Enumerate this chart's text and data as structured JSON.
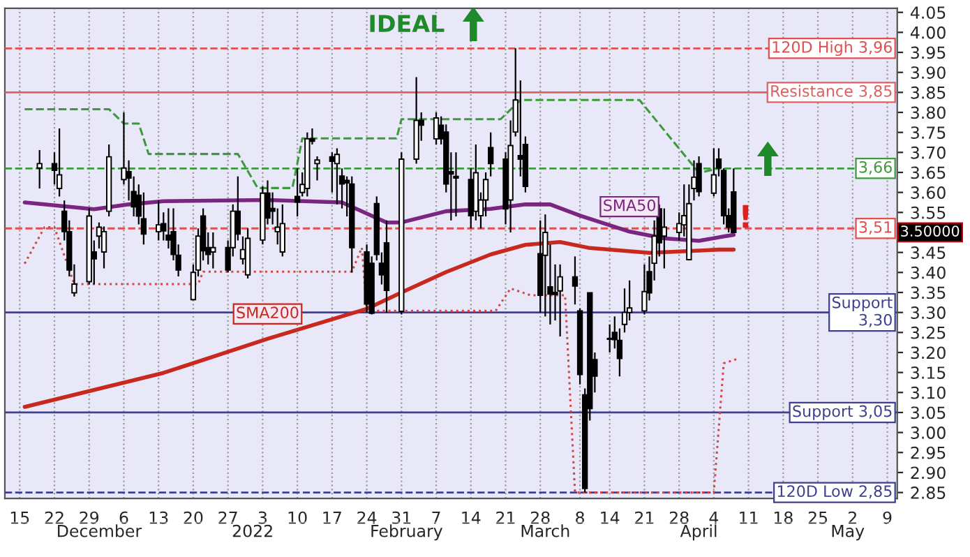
{
  "chart_data": {
    "type": "candlestick",
    "x": [
      "2021-11-19",
      "2021-11-22",
      "2021-11-23",
      "2021-11-24",
      "2021-11-25",
      "2021-11-26",
      "2021-11-29",
      "2021-11-30",
      "2021-12-01",
      "2021-12-02",
      "2021-12-03",
      "2021-12-06",
      "2021-12-07",
      "2021-12-08",
      "2021-12-09",
      "2021-12-10",
      "2021-12-13",
      "2021-12-14",
      "2021-12-15",
      "2021-12-16",
      "2021-12-17",
      "2021-12-20",
      "2021-12-21",
      "2021-12-22",
      "2021-12-23",
      "2021-12-24",
      "2021-12-27",
      "2021-12-28",
      "2021-12-29",
      "2021-12-30",
      "2021-12-31",
      "2022-01-03",
      "2022-01-04",
      "2022-01-05",
      "2022-01-06",
      "2022-01-07",
      "2022-01-10",
      "2022-01-11",
      "2022-01-12",
      "2022-01-13",
      "2022-01-14",
      "2022-01-17",
      "2022-01-18",
      "2022-01-19",
      "2022-01-20",
      "2022-01-21",
      "2022-01-24",
      "2022-01-25",
      "2022-01-26",
      "2022-01-27",
      "2022-01-28",
      "2022-01-31",
      "2022-02-03",
      "2022-02-04",
      "2022-02-07",
      "2022-02-08",
      "2022-02-09",
      "2022-02-10",
      "2022-02-11",
      "2022-02-14",
      "2022-02-15",
      "2022-02-16",
      "2022-02-17",
      "2022-02-18",
      "2022-02-21",
      "2022-02-22",
      "2022-02-23",
      "2022-02-24",
      "2022-02-25",
      "2022-02-28",
      "2022-03-01",
      "2022-03-02",
      "2022-03-03",
      "2022-03-04",
      "2022-03-07",
      "2022-03-08",
      "2022-03-09",
      "2022-03-10",
      "2022-03-11",
      "2022-03-14",
      "2022-03-15",
      "2022-03-16",
      "2022-03-17",
      "2022-03-18",
      "2022-03-21",
      "2022-03-22",
      "2022-03-23",
      "2022-03-24",
      "2022-03-25",
      "2022-03-28",
      "2022-03-29",
      "2022-03-30",
      "2022-03-31",
      "2022-04-01",
      "2022-04-04",
      "2022-04-05",
      "2022-04-06",
      "2022-04-07",
      "2022-04-08"
    ],
    "ohlc": [
      [
        3.661,
        3.706,
        3.61,
        3.672
      ],
      [
        3.672,
        3.7,
        3.62,
        3.655
      ],
      [
        3.61,
        3.76,
        3.59,
        3.644
      ],
      [
        3.553,
        3.58,
        3.48,
        3.502
      ],
      [
        3.502,
        3.53,
        3.39,
        3.406
      ],
      [
        3.349,
        3.42,
        3.34,
        3.371
      ],
      [
        3.377,
        3.56,
        3.37,
        3.541
      ],
      [
        3.451,
        3.48,
        3.37,
        3.434
      ],
      [
        3.491,
        3.525,
        3.46,
        3.513
      ],
      [
        3.451,
        3.515,
        3.41,
        3.502
      ],
      [
        3.553,
        3.72,
        3.54,
        3.689
      ],
      [
        3.632,
        3.8,
        3.62,
        3.661
      ],
      [
        3.652,
        3.68,
        3.58,
        3.636
      ],
      [
        3.602,
        3.64,
        3.54,
        3.564
      ],
      [
        3.593,
        3.62,
        3.52,
        3.541
      ],
      [
        3.534,
        3.6,
        3.47,
        3.496
      ],
      [
        3.502,
        3.58,
        3.48,
        3.519
      ],
      [
        3.522,
        3.55,
        3.48,
        3.504
      ],
      [
        3.493,
        3.56,
        3.46,
        3.481
      ],
      [
        3.502,
        3.56,
        3.43,
        3.445
      ],
      [
        3.443,
        3.47,
        3.39,
        3.406
      ],
      [
        3.332,
        3.42,
        3.33,
        3.4
      ],
      [
        3.406,
        3.51,
        3.39,
        3.491
      ],
      [
        3.541,
        3.56,
        3.43,
        3.454
      ],
      [
        3.462,
        3.5,
        3.42,
        3.445
      ],
      [
        3.451,
        3.5,
        3.41,
        3.462
      ],
      [
        3.462,
        3.48,
        3.4,
        3.406
      ],
      [
        3.462,
        3.57,
        3.44,
        3.553
      ],
      [
        3.553,
        3.64,
        3.48,
        3.496
      ],
      [
        3.434,
        3.49,
        3.42,
        3.457
      ],
      [
        3.394,
        3.51,
        3.385,
        3.485
      ],
      [
        3.481,
        3.615,
        3.47,
        3.598
      ],
      [
        3.598,
        3.63,
        3.52,
        3.536
      ],
      [
        3.56,
        3.6,
        3.52,
        3.553
      ],
      [
        3.502,
        3.56,
        3.47,
        3.513
      ],
      [
        3.451,
        3.57,
        3.44,
        3.522
      ],
      [
        3.59,
        3.66,
        3.54,
        3.576
      ],
      [
        3.6,
        3.65,
        3.59,
        3.62
      ],
      [
        3.61,
        3.75,
        3.59,
        3.734
      ],
      [
        3.734,
        3.76,
        3.72,
        3.728
      ],
      [
        3.672,
        3.69,
        3.63,
        3.681
      ],
      [
        3.689,
        3.7,
        3.6,
        3.678
      ],
      [
        3.672,
        3.71,
        3.57,
        3.695
      ],
      [
        3.641,
        3.66,
        3.56,
        3.621
      ],
      [
        3.63,
        3.64,
        3.54,
        3.624
      ],
      [
        3.621,
        3.64,
        3.4,
        3.462
      ],
      [
        3.451,
        3.47,
        3.3,
        3.321
      ],
      [
        3.423,
        3.44,
        3.295,
        3.298
      ],
      [
        3.572,
        3.59,
        3.43,
        3.445
      ],
      [
        3.423,
        3.45,
        3.37,
        3.394
      ],
      [
        3.474,
        3.53,
        3.3,
        3.355
      ],
      [
        3.303,
        3.7,
        3.295,
        3.683
      ],
      [
        3.683,
        3.888,
        3.672,
        3.78
      ],
      [
        3.78,
        3.8,
        3.729,
        3.768
      ],
      [
        3.734,
        3.8,
        3.72,
        3.786
      ],
      [
        3.768,
        3.79,
        3.72,
        3.734
      ],
      [
        3.751,
        3.77,
        3.6,
        3.621
      ],
      [
        3.652,
        3.7,
        3.53,
        3.646
      ],
      [
        3.64,
        3.7,
        3.54,
        3.636
      ],
      [
        3.632,
        3.66,
        3.51,
        3.542
      ],
      [
        3.553,
        3.72,
        3.53,
        3.649
      ],
      [
        3.542,
        3.6,
        3.51,
        3.581
      ],
      [
        3.581,
        3.65,
        3.54,
        3.632
      ],
      [
        3.712,
        3.75,
        3.64,
        3.672
      ],
      [
        3.683,
        3.7,
        3.52,
        3.559
      ],
      [
        3.581,
        3.78,
        3.5,
        3.717
      ],
      [
        3.751,
        3.96,
        3.74,
        3.831
      ],
      [
        3.692,
        3.88,
        3.64,
        3.683
      ],
      [
        3.72,
        3.74,
        3.6,
        3.615
      ],
      [
        3.447,
        3.53,
        3.3,
        3.343
      ],
      [
        3.443,
        3.545,
        3.29,
        3.5
      ],
      [
        3.364,
        3.47,
        3.27,
        3.346
      ],
      [
        3.35,
        3.42,
        3.28,
        3.345
      ],
      [
        3.354,
        3.42,
        3.24,
        3.389
      ],
      [
        3.389,
        3.44,
        3.32,
        3.366
      ],
      [
        3.304,
        3.31,
        3.12,
        3.145
      ],
      [
        3.094,
        3.11,
        2.85,
        2.86
      ],
      [
        3.349,
        3.35,
        3.03,
        3.06
      ],
      [
        3.182,
        3.2,
        3.1,
        3.141
      ],
      [
        3.235,
        3.27,
        3.2,
        3.233
      ],
      [
        3.25,
        3.29,
        3.21,
        3.232
      ],
      [
        3.23,
        3.26,
        3.14,
        3.185
      ],
      [
        3.27,
        3.36,
        3.25,
        3.3
      ],
      [
        3.3,
        3.38,
        3.28,
        3.311
      ],
      [
        3.304,
        3.42,
        3.295,
        3.352
      ],
      [
        3.402,
        3.44,
        3.33,
        3.349
      ],
      [
        3.423,
        3.53,
        3.38,
        3.491
      ],
      [
        3.559,
        3.57,
        3.44,
        3.474
      ],
      [
        3.491,
        3.56,
        3.41,
        3.513
      ],
      [
        3.5,
        3.55,
        3.48,
        3.522
      ],
      [
        3.519,
        3.62,
        3.49,
        3.542
      ],
      [
        3.432,
        3.62,
        3.43,
        3.572
      ],
      [
        3.61,
        3.68,
        3.58,
        3.638
      ],
      [
        3.672,
        3.69,
        3.59,
        3.602
      ],
      [
        3.598,
        3.71,
        3.59,
        3.644
      ],
      [
        3.683,
        3.71,
        3.64,
        3.661
      ],
      [
        3.655,
        3.66,
        3.52,
        3.542
      ],
      [
        3.542,
        3.56,
        3.5,
        3.513
      ],
      [
        3.601,
        3.66,
        3.5,
        3.5
      ]
    ],
    "series": [
      {
        "name": "SMA50",
        "type": "line",
        "color": "#7a2580",
        "line_style": "solid",
        "x": [
          "2021-11-16",
          "2021-11-30",
          "2021-12-07",
          "2021-12-14",
          "2022-01-04",
          "2022-01-19",
          "2022-01-28",
          "2022-01-31",
          "2022-02-09",
          "2022-02-18",
          "2022-02-25",
          "2022-03-02",
          "2022-03-08",
          "2022-03-18",
          "2022-03-25",
          "2022-04-01",
          "2022-04-06",
          "2022-04-08"
        ],
        "values": [
          3.575,
          3.558,
          3.57,
          3.578,
          3.581,
          3.575,
          3.525,
          3.525,
          3.553,
          3.559,
          3.57,
          3.57,
          3.542,
          3.502,
          3.485,
          3.479,
          3.49,
          3.494
        ]
      },
      {
        "name": "SMA200",
        "type": "line",
        "color": "#c8281e",
        "line_style": "solid",
        "x": [
          "2021-11-16",
          "2021-12-14",
          "2022-01-04",
          "2022-01-24",
          "2022-01-31",
          "2022-02-09",
          "2022-02-18",
          "2022-02-25",
          "2022-03-04",
          "2022-03-10",
          "2022-03-22",
          "2022-04-05",
          "2022-04-08"
        ],
        "values": [
          3.064,
          3.149,
          3.234,
          3.309,
          3.35,
          3.401,
          3.445,
          3.469,
          3.476,
          3.461,
          3.449,
          3.457,
          3.457
        ]
      },
      {
        "type": "line",
        "color": "#3c9a3c",
        "line_style": "dashed",
        "x": [
          "2021-11-16",
          "2021-12-03",
          "2021-12-06",
          "2021-12-09",
          "2021-12-11",
          "2021-12-29",
          "2022-01-02",
          "2022-01-09",
          "2022-01-11",
          "2022-01-30",
          "2022-01-31",
          "2022-02-20",
          "2022-02-24",
          "2022-03-20",
          "2022-03-24",
          "2022-04-01",
          "2022-04-05"
        ],
        "values": [
          3.808,
          3.808,
          3.772,
          3.772,
          3.696,
          3.696,
          3.611,
          3.611,
          3.735,
          3.735,
          3.783,
          3.783,
          3.831,
          3.831,
          null,
          3.649,
          3.66
        ]
      },
      {
        "type": "line",
        "color": "#d04848",
        "line_style": "dotted",
        "x": [
          "2021-11-16",
          "2021-11-20",
          "2021-11-22",
          "2021-11-26",
          "2021-12-21",
          "2021-12-22",
          "2022-01-21",
          "2022-01-23",
          "2022-01-24",
          "2022-02-19",
          "2022-02-22",
          "2022-02-26",
          "2022-03-05",
          "2022-03-07",
          "2022-04-04",
          "2022-04-06",
          "2022-04-09"
        ],
        "values": [
          3.422,
          3.513,
          3.513,
          3.371,
          3.371,
          3.402,
          3.402,
          3.462,
          3.304,
          3.304,
          3.36,
          3.343,
          3.343,
          2.85,
          2.85,
          3.173,
          3.185
        ]
      }
    ],
    "ref_lines": [
      {
        "axis": "y",
        "value": 3.96,
        "label": "120D High 3,96",
        "color": "#e05050",
        "line_style": "dashed"
      },
      {
        "axis": "y",
        "value": 3.85,
        "label": "Resistance 3,85",
        "color": "#e06060",
        "line_style": "solid"
      },
      {
        "axis": "y",
        "value": 3.66,
        "label": "3,66",
        "color": "#3c9a3c",
        "line_style": "dashed"
      },
      {
        "axis": "y",
        "value": 3.51,
        "label": "3,51",
        "color": "#e05050",
        "line_style": "dashed"
      },
      {
        "axis": "y",
        "value": 3.3,
        "label": "Support\n3,30",
        "color": "#404090",
        "line_style": "solid"
      },
      {
        "axis": "y",
        "value": 3.05,
        "label": "Support 3,05",
        "color": "#404090",
        "line_style": "solid"
      },
      {
        "axis": "y",
        "value": 2.85,
        "label": "120D Low 2,85",
        "color": "#404090",
        "line_style": "dashed"
      }
    ],
    "annotations": [
      "IDEAL",
      "!",
      "3.50000"
    ],
    "xlim": [
      "2021-11-12",
      "2022-05-11"
    ],
    "ylim": [
      2.835,
      4.06
    ],
    "xticks": [
      {
        "value": "2021-11-15",
        "label": "15"
      },
      {
        "value": "2021-11-22",
        "label": "22"
      },
      {
        "value": "2021-11-29",
        "label": "29"
      },
      {
        "value": "2021-12-06",
        "label": "6"
      },
      {
        "value": "2021-12-13",
        "label": "13"
      },
      {
        "value": "2021-12-20",
        "label": "20"
      },
      {
        "value": "2021-12-27",
        "label": "27"
      },
      {
        "value": "2022-01-03",
        "label": "3"
      },
      {
        "value": "2022-01-10",
        "label": "10"
      },
      {
        "value": "2022-01-17",
        "label": "17"
      },
      {
        "value": "2022-01-24",
        "label": "24"
      },
      {
        "value": "2022-01-31",
        "label": "31"
      },
      {
        "value": "2022-02-07",
        "label": "7"
      },
      {
        "value": "2022-02-14",
        "label": "14"
      },
      {
        "value": "2022-02-21",
        "label": "21"
      },
      {
        "value": "2022-02-28",
        "label": "28"
      },
      {
        "value": "2022-03-08",
        "label": "8"
      },
      {
        "value": "2022-03-14",
        "label": "14"
      },
      {
        "value": "2022-03-21",
        "label": "21"
      },
      {
        "value": "2022-03-28",
        "label": "28"
      },
      {
        "value": "2022-04-04",
        "label": "4"
      },
      {
        "value": "2022-04-11",
        "label": "11"
      },
      {
        "value": "2022-04-18",
        "label": "18"
      },
      {
        "value": "2022-04-25",
        "label": "25"
      },
      {
        "value": "2022-05-02",
        "label": "2"
      },
      {
        "value": "2022-05-09",
        "label": "9"
      }
    ],
    "x2lim": [
      "2021-11-12",
      "2022-05-11"
    ],
    "x2ticks": [
      {
        "value": "2021-12-01",
        "label": "December"
      },
      {
        "value": "2022-01-01",
        "label": "2022"
      },
      {
        "value": "2022-02-01",
        "label": "February"
      },
      {
        "value": "2022-03-01",
        "label": "March"
      },
      {
        "value": "2022-04-01",
        "label": "April"
      },
      {
        "value": "2022-05-01",
        "label": "May"
      }
    ],
    "yticks": [
      {
        "value": 2.85,
        "label": "2.85"
      },
      {
        "value": 2.9,
        "label": "2.90"
      },
      {
        "value": 2.95,
        "label": "2.95"
      },
      {
        "value": 3.0,
        "label": "3.00"
      },
      {
        "value": 3.05,
        "label": "3.05"
      },
      {
        "value": 3.1,
        "label": "3.10"
      },
      {
        "value": 3.15,
        "label": "3.15"
      },
      {
        "value": 3.2,
        "label": "3.20"
      },
      {
        "value": 3.25,
        "label": "3.25"
      },
      {
        "value": 3.3,
        "label": "3.30"
      },
      {
        "value": 3.35,
        "label": "3.35"
      },
      {
        "value": 3.4,
        "label": "3.40"
      },
      {
        "value": 3.45,
        "label": "3.45"
      },
      {
        "value": 3.5,
        "label": null
      },
      {
        "value": 3.55,
        "label": "3.55"
      },
      {
        "value": 3.6,
        "label": "3.60"
      },
      {
        "value": 3.65,
        "label": "3.65"
      },
      {
        "value": 3.7,
        "label": "3.70"
      },
      {
        "value": 3.75,
        "label": "3.75"
      },
      {
        "value": 3.8,
        "label": "3.80"
      },
      {
        "value": 3.85,
        "label": "3.85"
      },
      {
        "value": 3.9,
        "label": "3.90"
      },
      {
        "value": 3.95,
        "label": "3.95"
      },
      {
        "value": 4.0,
        "label": "4.00"
      },
      {
        "value": 4.05,
        "label": "4.05"
      }
    ],
    "grid": "x"
  }
}
